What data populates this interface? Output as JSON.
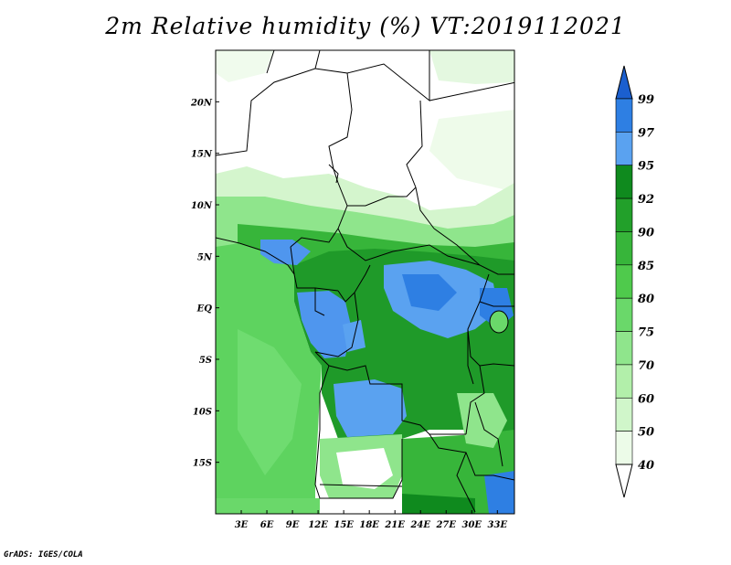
{
  "title": "2m Relative humidity (%) VT:2019112021",
  "credit": "GrADS: IGES/COLA",
  "map": {
    "lon_range": [
      0,
      35
    ],
    "lat_range": [
      -20,
      25
    ],
    "lon_ticks": [
      "3E",
      "6E",
      "9E",
      "12E",
      "15E",
      "18E",
      "21E",
      "24E",
      "27E",
      "30E",
      "33E"
    ],
    "lat_ticks": [
      "20N",
      "15N",
      "10N",
      "5N",
      "EQ",
      "5S",
      "10S",
      "15S"
    ]
  },
  "colorbar": {
    "labels": [
      "99",
      "97",
      "95",
      "92",
      "90",
      "85",
      "80",
      "75",
      "70",
      "60",
      "50",
      "40"
    ],
    "colors": [
      "#1b5fcf",
      "#2e7fe3",
      "#5aa2f0",
      "#0f8a1e",
      "#22a02a",
      "#37b53a",
      "#4fca4c",
      "#6ad86a",
      "#8fe58c",
      "#b2efaa",
      "#d0f6ca",
      "#ecfbe8"
    ]
  },
  "colors": {
    "ocean": "#5ed35f",
    "background": "#ffffff",
    "dry": "#ffffff"
  }
}
